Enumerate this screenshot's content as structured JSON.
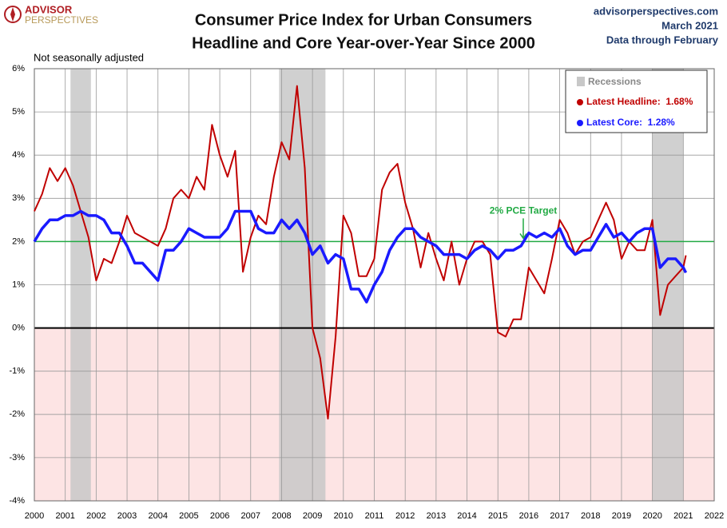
{
  "logo": {
    "line1": "ADVISOR",
    "line2": "PERSPECTIVES"
  },
  "source": {
    "site": "advisorperspectives.com",
    "date": "March 2021",
    "note": "Data through February"
  },
  "chart_data": {
    "type": "line",
    "title": [
      "Consumer Price Index for Urban Consumers",
      "Headline and Core Year-over-Year Since 2000"
    ],
    "subtitle": "Not seasonally adjusted",
    "x": [
      2000,
      2000.25,
      2000.5,
      2000.75,
      2001,
      2001.25,
      2001.5,
      2001.75,
      2002,
      2002.25,
      2002.5,
      2002.75,
      2003,
      2003.25,
      2003.5,
      2003.75,
      2004,
      2004.25,
      2004.5,
      2004.75,
      2005,
      2005.25,
      2005.5,
      2005.75,
      2006,
      2006.25,
      2006.5,
      2006.75,
      2007,
      2007.25,
      2007.5,
      2007.75,
      2008,
      2008.25,
      2008.5,
      2008.75,
      2009,
      2009.25,
      2009.5,
      2009.75,
      2010,
      2010.25,
      2010.5,
      2010.75,
      2011,
      2011.25,
      2011.5,
      2011.75,
      2012,
      2012.25,
      2012.5,
      2012.75,
      2013,
      2013.25,
      2013.5,
      2013.75,
      2014,
      2014.25,
      2014.5,
      2014.75,
      2015,
      2015.25,
      2015.5,
      2015.75,
      2016,
      2016.25,
      2016.5,
      2016.75,
      2017,
      2017.25,
      2017.5,
      2017.75,
      2018,
      2018.25,
      2018.5,
      2018.75,
      2019,
      2019.25,
      2019.5,
      2019.75,
      2020,
      2020.25,
      2020.5,
      2020.75,
      2021,
      2021.083
    ],
    "series": [
      {
        "name": "Latest Headline:  1.68%",
        "color": "#c00000",
        "width": 2,
        "values": [
          2.7,
          3.1,
          3.7,
          3.4,
          3.7,
          3.3,
          2.7,
          2.1,
          1.1,
          1.6,
          1.5,
          2.0,
          2.6,
          2.2,
          2.1,
          2.0,
          1.9,
          2.3,
          3.0,
          3.2,
          3.0,
          3.5,
          3.2,
          4.7,
          4.0,
          3.5,
          4.1,
          1.3,
          2.1,
          2.6,
          2.4,
          3.5,
          4.3,
          3.9,
          5.6,
          3.7,
          0.0,
          -0.7,
          -2.1,
          -0.2,
          2.6,
          2.2,
          1.2,
          1.2,
          1.6,
          3.2,
          3.6,
          3.8,
          2.9,
          2.3,
          1.4,
          2.2,
          1.6,
          1.1,
          2.0,
          1.0,
          1.6,
          2.0,
          2.0,
          1.7,
          -0.1,
          -0.2,
          0.2,
          0.2,
          1.4,
          1.1,
          0.8,
          1.6,
          2.5,
          2.2,
          1.7,
          2.0,
          2.1,
          2.5,
          2.9,
          2.5,
          1.6,
          2.0,
          1.8,
          1.8,
          2.5,
          0.3,
          1.0,
          1.2,
          1.4,
          1.68
        ]
      },
      {
        "name": "Latest Core:  1.28%",
        "color": "#1a1aff",
        "width": 3.5,
        "values": [
          2.0,
          2.3,
          2.5,
          2.5,
          2.6,
          2.6,
          2.7,
          2.6,
          2.6,
          2.5,
          2.2,
          2.2,
          1.9,
          1.5,
          1.5,
          1.3,
          1.1,
          1.8,
          1.8,
          2.0,
          2.3,
          2.2,
          2.1,
          2.1,
          2.1,
          2.3,
          2.7,
          2.7,
          2.7,
          2.3,
          2.2,
          2.2,
          2.5,
          2.3,
          2.5,
          2.2,
          1.7,
          1.9,
          1.5,
          1.7,
          1.6,
          0.9,
          0.9,
          0.6,
          1.0,
          1.3,
          1.8,
          2.1,
          2.3,
          2.3,
          2.1,
          2.0,
          1.9,
          1.7,
          1.7,
          1.7,
          1.6,
          1.8,
          1.9,
          1.8,
          1.6,
          1.8,
          1.8,
          1.9,
          2.2,
          2.1,
          2.2,
          2.1,
          2.3,
          1.9,
          1.7,
          1.8,
          1.8,
          2.1,
          2.4,
          2.1,
          2.2,
          2.0,
          2.2,
          2.3,
          2.3,
          1.4,
          1.6,
          1.6,
          1.4,
          1.28
        ]
      }
    ],
    "recessions": {
      "name": "Recessions",
      "color": "#c8c8c8",
      "spans": [
        [
          2001.17,
          2001.83
        ],
        [
          2007.92,
          2009.42
        ],
        [
          2020.0,
          2021.0
        ]
      ]
    },
    "reference_line": {
      "value": 2,
      "label": "2% PCE Target",
      "color": "#22aa44"
    },
    "negative_fill": "#fde4e4",
    "xlim": [
      2000,
      2022
    ],
    "xticks": [
      2000,
      2001,
      2002,
      2003,
      2004,
      2005,
      2006,
      2007,
      2008,
      2009,
      2010,
      2011,
      2012,
      2013,
      2014,
      2015,
      2016,
      2017,
      2018,
      2019,
      2020,
      2021,
      2022
    ],
    "ylim": [
      -4,
      6
    ],
    "yticks": [
      {
        "value": -4,
        "label": "-4%"
      },
      {
        "value": -3,
        "label": "-3%"
      },
      {
        "value": -2,
        "label": "-2%"
      },
      {
        "value": -1,
        "label": "-1%"
      },
      {
        "value": 0,
        "label": "0%"
      },
      {
        "value": 1,
        "label": "1%"
      },
      {
        "value": 2,
        "label": "2%"
      },
      {
        "value": 3,
        "label": "3%"
      },
      {
        "value": 4,
        "label": "4%"
      },
      {
        "value": 5,
        "label": "5%"
      },
      {
        "value": 6,
        "label": "6%"
      }
    ],
    "grid": true,
    "legend": "top-right"
  }
}
